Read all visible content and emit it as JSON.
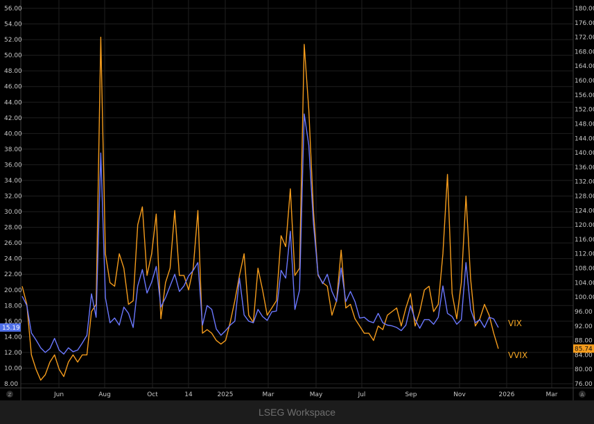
{
  "footer": {
    "text": "LSEG Workspace"
  },
  "left_axis_corner_icon": "zoom-icon",
  "right_axis_corner_icon": "auto-scale-icon",
  "chart_data": {
    "type": "line",
    "x_tick_labels": [
      "Jun",
      "Aug",
      "Oct",
      "14",
      "2025",
      "Mar",
      "May",
      "Jul",
      "Sep",
      "Nov",
      "2026",
      "Mar"
    ],
    "left_axis": {
      "min": 8,
      "max": 56,
      "ticks": [
        "8.00",
        "10.00",
        "12.00",
        "14.00",
        "16.00",
        "18.00",
        "20.00",
        "22.00",
        "24.00",
        "26.00",
        "28.00",
        "30.00",
        "32.00",
        "34.00",
        "36.00",
        "38.00",
        "40.00",
        "42.00",
        "44.00",
        "46.00",
        "48.00",
        "50.00",
        "52.00",
        "54.00",
        "56.00"
      ]
    },
    "right_axis": {
      "min": 76,
      "max": 180,
      "ticks": [
        "76.00",
        "80.00",
        "84.00",
        "88.00",
        "92.00",
        "96.00",
        "100.00",
        "104.00",
        "108.00",
        "112.00",
        "116.00",
        "120.00",
        "124.00",
        "128.00",
        "132.00",
        "136.00",
        "140.00",
        "144.00",
        "148.00",
        "152.00",
        "156.00",
        "160.00",
        "164.00",
        "168.00",
        "172.00",
        "176.00",
        "180.00"
      ]
    },
    "grid": true,
    "series": [
      {
        "name": "VIX",
        "axis": "left",
        "color": "#6b78ff",
        "label_color": "#f5a623",
        "last_value": "15.19",
        "values": [
          19.2,
          18.0,
          14.5,
          13.6,
          12.6,
          12.0,
          12.5,
          13.8,
          12.3,
          11.8,
          12.6,
          12.1,
          12.3,
          13.2,
          14.2,
          19.5,
          16.5,
          37.5,
          19.0,
          15.8,
          16.4,
          15.5,
          17.8,
          17.0,
          15.2,
          20.5,
          22.6,
          19.6,
          21.0,
          23.0,
          17.8,
          19.0,
          20.5,
          22.0,
          19.8,
          20.5,
          21.8,
          22.5,
          23.5,
          15.5,
          18.0,
          17.5,
          15.0,
          14.2,
          14.8,
          15.5,
          16.0,
          21.5,
          16.8,
          16.0,
          15.8,
          17.5,
          16.6,
          16.1,
          17.2,
          17.3,
          22.5,
          21.5,
          27.5,
          17.5,
          20.0,
          42.5,
          38.5,
          28.5,
          22.0,
          20.8,
          22.0,
          19.8,
          18.5,
          22.8,
          18.5,
          19.8,
          18.5,
          16.4,
          16.5,
          16.0,
          15.8,
          17.0,
          15.8,
          15.5,
          15.4,
          15.2,
          14.8,
          15.5,
          18.0,
          16.2,
          15.1,
          16.2,
          16.2,
          15.6,
          16.5,
          20.5,
          17.0,
          16.6,
          15.6,
          16.2,
          23.5,
          17.5,
          15.8,
          16.2,
          15.2,
          16.5,
          16.3,
          15.2
        ]
      },
      {
        "name": "VVIX",
        "axis": "right",
        "color": "#f59c1c",
        "label_color": "#f5a623",
        "last_value": "85.74",
        "values": [
          103.0,
          98.0,
          84.0,
          80.0,
          77.0,
          78.5,
          82.0,
          84.0,
          80.0,
          78.0,
          82.0,
          84.0,
          82.0,
          84.0,
          84.0,
          96.0,
          98.0,
          172.0,
          112.0,
          104.0,
          103.0,
          112.0,
          108.0,
          98.0,
          99.0,
          120.0,
          125.0,
          106.0,
          112.0,
          123.0,
          94.0,
          104.0,
          108.0,
          124.0,
          106.0,
          106.0,
          102.0,
          108.0,
          124.0,
          90.0,
          91.0,
          90.0,
          88.0,
          87.0,
          88.0,
          93.0,
          99.0,
          106.0,
          112.0,
          95.0,
          93.0,
          108.0,
          102.0,
          95.0,
          97.0,
          99.0,
          117.0,
          114.0,
          130.0,
          106.0,
          108.0,
          170.0,
          152.0,
          124.0,
          106.0,
          104.0,
          103.0,
          95.0,
          99.0,
          113.0,
          97.0,
          98.0,
          94.0,
          92.0,
          90.0,
          90.0,
          88.0,
          92.0,
          91.0,
          95.0,
          96.0,
          97.0,
          92.0,
          97.0,
          101.0,
          92.0,
          96.0,
          102.0,
          103.0,
          96.0,
          98.0,
          112.0,
          134.0,
          101.0,
          94.0,
          104.0,
          128.0,
          105.0,
          92.0,
          94.0,
          98.0,
          95.0,
          90.0,
          85.7
        ]
      }
    ]
  }
}
